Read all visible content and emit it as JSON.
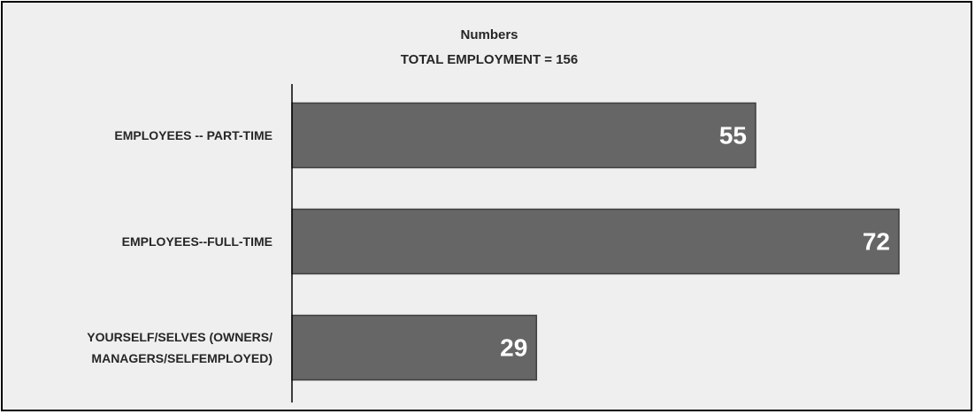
{
  "chart_data": {
    "type": "bar",
    "orientation": "horizontal",
    "title": "Numbers",
    "subtitle": "TOTAL EMPLOYMENT = 156",
    "categories": [
      "EMPLOYEES -- PART-TIME",
      "EMPLOYEES--FULL-TIME",
      "YOURSELF/SELVES (OWNERS/ MANAGERS/SELFEMPLOYED)"
    ],
    "values": [
      55,
      72,
      29
    ],
    "color": "#666666"
  }
}
